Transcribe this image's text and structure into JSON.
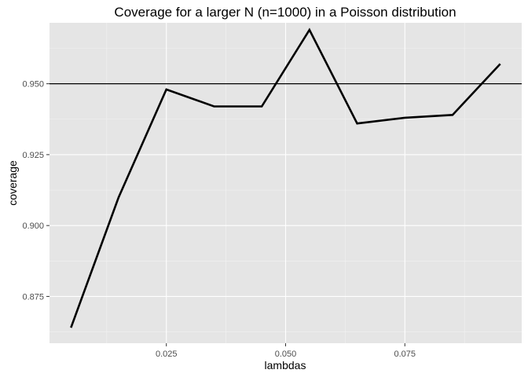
{
  "chart_data": {
    "type": "line",
    "title": "Coverage for a larger N (n=1000) in a Poisson distribution",
    "xlabel": "lambdas",
    "ylabel": "coverage",
    "x": [
      0.005,
      0.015,
      0.025,
      0.035,
      0.045,
      0.055,
      0.065,
      0.075,
      0.085,
      0.095
    ],
    "series": [
      {
        "name": "coverage",
        "values": [
          0.864,
          0.91,
          0.948,
          0.942,
          0.942,
          0.969,
          0.936,
          0.938,
          0.939,
          0.957
        ]
      }
    ],
    "xlim": [
      0.0005,
      0.0995
    ],
    "ylim": [
      0.8585,
      0.9715
    ],
    "xticks": [
      0.025,
      0.05,
      0.075
    ],
    "xtick_labels": [
      "0.025",
      "0.050",
      "0.075"
    ],
    "xminor": [
      0.0125,
      0.0375,
      0.0625,
      0.0875
    ],
    "yticks": [
      0.875,
      0.9,
      0.925,
      0.95
    ],
    "ytick_labels": [
      "0.875",
      "0.900",
      "0.925",
      "0.950"
    ],
    "yminor": [
      0.8625,
      0.8875,
      0.9125,
      0.9375,
      0.9625
    ],
    "hline": 0.95,
    "grid": true,
    "legend": "none",
    "colors": {
      "panel": "#e5e5e5",
      "grid_major": "#ffffff",
      "grid_minor": "#f2f2f2",
      "line": "#000000",
      "tick_text": "#4d4d4d",
      "tick_mark": "#333333"
    }
  }
}
